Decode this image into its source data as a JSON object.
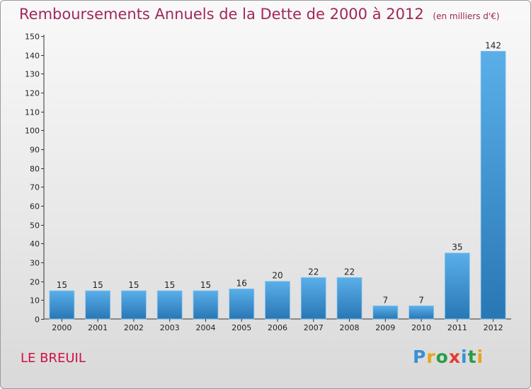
{
  "header": {
    "title": "Remboursements Annuels de la Dette de 2000 à 2012",
    "unit": "(en milliers d'€)"
  },
  "footer": {
    "commune": "LE BREUIL",
    "brand": "Proxiti",
    "brand_letters": [
      "P",
      "r",
      "o",
      "x",
      "i",
      "t",
      "i"
    ]
  },
  "colors": {
    "title": "#a1275c",
    "bar_top": "#5aafe9",
    "bar_bottom": "#2877b5",
    "commune": "#cc1144"
  },
  "chart_data": {
    "type": "bar",
    "title": "Remboursements Annuels de la Dette de 2000 à 2012",
    "subtitle": "(en milliers d'€)",
    "xlabel": "",
    "ylabel": "",
    "categories": [
      "2000",
      "2001",
      "2002",
      "2003",
      "2004",
      "2005",
      "2006",
      "2007",
      "2008",
      "2009",
      "2010",
      "2011",
      "2012"
    ],
    "values": [
      15,
      15,
      15,
      15,
      15,
      16,
      20,
      22,
      22,
      7,
      7,
      35,
      142
    ],
    "ylim": [
      0,
      150
    ],
    "yticks": [
      0,
      10,
      20,
      30,
      40,
      50,
      60,
      70,
      80,
      90,
      100,
      110,
      120,
      130,
      140,
      150
    ],
    "grid": false,
    "legend": "none"
  }
}
